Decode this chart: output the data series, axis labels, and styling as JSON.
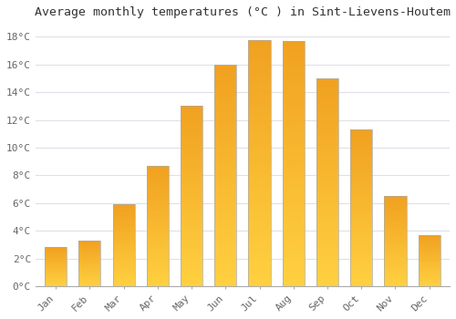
{
  "title": "Average monthly temperatures (°C ) in Sint-Lievens-Houtem",
  "months": [
    "Jan",
    "Feb",
    "Mar",
    "Apr",
    "May",
    "Jun",
    "Jul",
    "Aug",
    "Sep",
    "Oct",
    "Nov",
    "Dec"
  ],
  "values": [
    2.8,
    3.3,
    5.9,
    8.7,
    13.0,
    16.0,
    17.8,
    17.7,
    15.0,
    11.3,
    6.5,
    3.7
  ],
  "bar_color_bottom": "#FFD040",
  "bar_color_top": "#F0A020",
  "bar_edge_color": "#AAAAAA",
  "ylim": [
    0,
    19
  ],
  "yticks": [
    0,
    2,
    4,
    6,
    8,
    10,
    12,
    14,
    16,
    18
  ],
  "background_color": "#FFFFFF",
  "grid_color": "#E0E0E8",
  "title_fontsize": 9.5,
  "tick_fontsize": 8,
  "tick_color": "#666666",
  "font_family": "monospace"
}
